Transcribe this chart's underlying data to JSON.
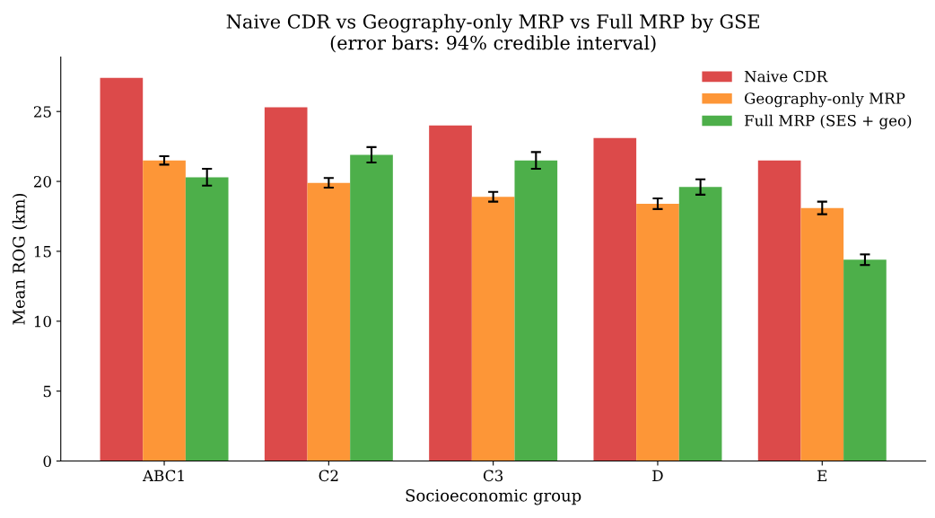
{
  "chart_data": {
    "type": "bar",
    "title": "Naive CDR vs Geography-only MRP vs Full MRP by GSE\n(error bars: 94% credible interval)",
    "xlabel": "Socioeconomic group",
    "ylabel": "Mean ROG (km)",
    "categories": [
      "ABC1",
      "C2",
      "C3",
      "D",
      "E"
    ],
    "series": [
      {
        "name": "Naive CDR",
        "color": "#dc4a4a",
        "values": [
          27.4,
          25.3,
          24.0,
          23.1,
          21.5
        ]
      },
      {
        "name": "Geography-only MRP",
        "color": "#fd9637",
        "values": [
          21.5,
          19.9,
          18.9,
          18.4,
          18.1
        ],
        "errors": [
          0.3,
          0.35,
          0.35,
          0.38,
          0.45
        ]
      },
      {
        "name": "Full MRP (SES + geo)",
        "color": "#4daf4a",
        "values": [
          20.3,
          21.9,
          21.5,
          19.6,
          14.4
        ],
        "errors": [
          0.6,
          0.55,
          0.6,
          0.55,
          0.38
        ]
      }
    ],
    "ylim": [
      0,
      28.9
    ],
    "yticks": [
      0,
      5,
      10,
      15,
      20,
      25
    ],
    "grid": false,
    "legend": "top right"
  }
}
